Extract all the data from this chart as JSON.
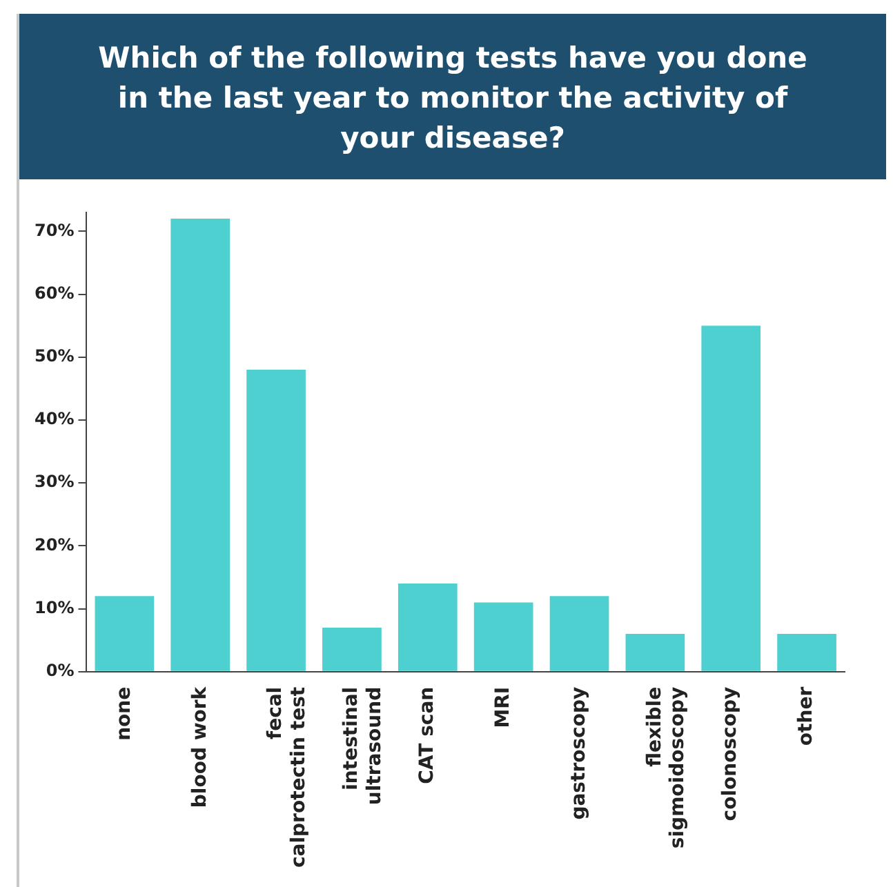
{
  "chart_data": {
    "type": "bar",
    "title": "Which of the following tests have you done in the last year to monitor the activity of your disease?",
    "categories": [
      "none",
      "blood work",
      "fecal calprotectin test",
      "intestinal ultrasound",
      "CAT scan",
      "MRI",
      "gastroscopy",
      "flexible sigmoidoscopy",
      "colonoscopy",
      "other"
    ],
    "values": [
      12,
      72,
      48,
      7,
      14,
      11,
      12,
      6,
      55,
      6
    ],
    "color": "#4ecfd0",
    "ylim": [
      0,
      73
    ],
    "yticks": [
      {
        "value": 0,
        "label": "0%"
      },
      {
        "value": 10,
        "label": "10%"
      },
      {
        "value": 20,
        "label": "20%"
      },
      {
        "value": 30,
        "label": "30%"
      },
      {
        "value": 40,
        "label": "40%"
      },
      {
        "value": 50,
        "label": "50%"
      },
      {
        "value": 60,
        "label": "60%"
      },
      {
        "value": 70,
        "label": "70%"
      }
    ]
  }
}
